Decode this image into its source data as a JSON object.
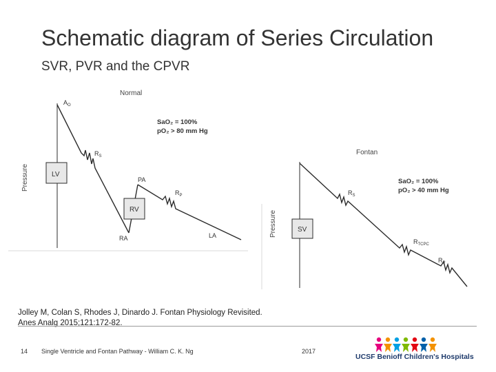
{
  "slide": {
    "title": "Schematic diagram of Series Circulation",
    "subtitle": "SVR, PVR and the CPVR"
  },
  "normal_panel": {
    "heading": "Normal",
    "y_axis": "Pressure",
    "ao_label": "A",
    "ao_sub": "O",
    "rs_label": "R",
    "rs_sub": "S",
    "lv_label": "LV",
    "pa_label": "PA",
    "rv_label": "RV",
    "rp_label": "R",
    "rp_sub": "P",
    "ra_label": "RA",
    "la_label": "LA",
    "sat_line1": "SaO₂ = 100%",
    "sat_line2": "pO₂ > 80 mm Hg"
  },
  "fontan_panel": {
    "heading": "Fontan",
    "y_axis": "Pressure",
    "sv_label": "SV",
    "rs_label": "R",
    "rs_sub": "S",
    "rtcpc_label": "R",
    "rtcpc_sub": "TCPC",
    "rp_label": "R",
    "rp_sub": "P",
    "sat_line1": "SaO₂ = 100%",
    "sat_line2": "pO₂ > 40 mm Hg"
  },
  "citation": "Jolley M, Colan S, Rhodes J, Dinardo J. Fontan Physiology Revisited. Anes Analg 2015;121:172-82.",
  "footer": {
    "slide_number": "14",
    "text": "Single Ventricle and Fontan Pathway - William C. K. Ng",
    "year": "2017",
    "logo_text": "UCSF Benioff Children's Hospitals"
  },
  "colors": {
    "line": "#2b2b2b",
    "box_fill": "#e8e8e8",
    "logo_people": [
      "#e6007e",
      "#f39200",
      "#00a0e3",
      "#7fba00",
      "#e30613",
      "#0060a9",
      "#f39200"
    ],
    "logo_text": "#1e3a6b"
  }
}
